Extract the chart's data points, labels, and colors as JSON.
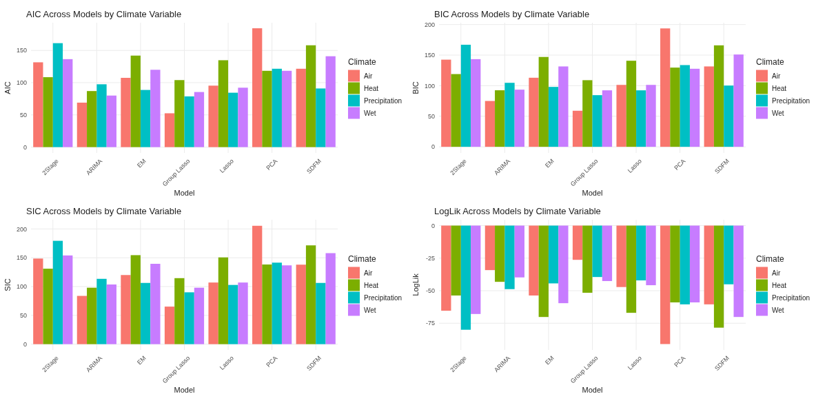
{
  "chart_data": [
    {
      "type": "bar",
      "title": "AIC Across Models by Climate Variable",
      "xlabel": "Model",
      "ylabel": "AIC",
      "legend_title": "Climate",
      "legend": "right",
      "grid": true,
      "categories": [
        "2Stage",
        "ARIMA",
        "EM",
        "Group Lasso",
        "Lasso",
        "PCA",
        "SDFM"
      ],
      "ylim": [
        -9,
        193
      ],
      "yticks": [
        0,
        50,
        100,
        150
      ],
      "series": [
        {
          "name": "Air",
          "color": "#f8766d",
          "values": [
            131.6,
            69,
            107.5,
            52.5,
            95.4,
            184.4,
            121.6
          ]
        },
        {
          "name": "Heat",
          "color": "#7cae00",
          "values": [
            108.5,
            87,
            142,
            104,
            134.8,
            118.4,
            158
          ]
        },
        {
          "name": "Precipitation",
          "color": "#00bfc4",
          "values": [
            161.3,
            97.5,
            88.7,
            78.7,
            84.4,
            121.6,
            91
          ]
        },
        {
          "name": "Wet",
          "color": "#c77cff",
          "values": [
            136.5,
            80,
            120,
            85.5,
            92.2,
            118.4,
            141
          ]
        }
      ]
    },
    {
      "type": "bar",
      "title": "BIC Across Models by Climate Variable",
      "xlabel": "Model",
      "ylabel": "BIC",
      "legend_title": "Climate",
      "legend": "right",
      "grid": true,
      "categories": [
        "2Stage",
        "ARIMA",
        "EM",
        "Group Lasso",
        "Lasso",
        "PCA",
        "SDFM"
      ],
      "ylim": [
        -10,
        203
      ],
      "yticks": [
        0,
        50,
        100,
        150,
        200
      ],
      "series": [
        {
          "name": "Air",
          "color": "#f8766d",
          "values": [
            142.6,
            75,
            113,
            59,
            101.3,
            193.7,
            131.5
          ]
        },
        {
          "name": "Heat",
          "color": "#7cae00",
          "values": [
            119,
            92.5,
            147,
            109,
            140.8,
            129.6,
            166
          ]
        },
        {
          "name": "Precipitation",
          "color": "#00bfc4",
          "values": [
            167,
            104.7,
            98,
            84.5,
            92.4,
            133.7,
            100.2
          ]
        },
        {
          "name": "Wet",
          "color": "#c77cff",
          "values": [
            143.4,
            93.5,
            131.5,
            92.4,
            101.3,
            127.7,
            151
          ]
        }
      ]
    },
    {
      "type": "bar",
      "title": "SIC Across Models by Climate Variable",
      "xlabel": "Model",
      "ylabel": "SIC",
      "legend_title": "Climate",
      "legend": "right",
      "grid": true,
      "categories": [
        "2Stage",
        "ARIMA",
        "EM",
        "Group Lasso",
        "Lasso",
        "PCA",
        "SDFM"
      ],
      "ylim": [
        -10,
        216
      ],
      "yticks": [
        0,
        50,
        100,
        150,
        200
      ],
      "series": [
        {
          "name": "Air",
          "color": "#f8766d",
          "values": [
            148.6,
            83.8,
            120,
            65.2,
            107,
            205.5,
            138
          ]
        },
        {
          "name": "Heat",
          "color": "#7cae00",
          "values": [
            131,
            98,
            154.5,
            114.6,
            150.6,
            138.3,
            171.5
          ]
        },
        {
          "name": "Precipitation",
          "color": "#00bfc4",
          "values": [
            179.4,
            113.4,
            106.3,
            90,
            102.8,
            141.5,
            106.3
          ]
        },
        {
          "name": "Wet",
          "color": "#c77cff",
          "values": [
            154,
            103.6,
            139.5,
            98,
            107,
            136.8,
            158
          ]
        }
      ]
    },
    {
      "type": "bar",
      "title": "LogLik Across Models by Climate Variable",
      "xlabel": "Model",
      "ylabel": "LogLik",
      "legend_title": "Climate",
      "legend": "right",
      "grid": true,
      "categories": [
        "2Stage",
        "ARIMA",
        "EM",
        "Group Lasso",
        "Lasso",
        "PCA",
        "SDFM"
      ],
      "ylim": [
        -95.5,
        4.5
      ],
      "yticks": [
        0,
        -25,
        -50,
        -75
      ],
      "series": [
        {
          "name": "Air",
          "color": "#f8766d",
          "values": [
            -65.4,
            -34.2,
            -53.7,
            -26.3,
            -47.2,
            -91,
            -60.5
          ]
        },
        {
          "name": "Heat",
          "color": "#7cae00",
          "values": [
            -53.7,
            -43.2,
            -70.2,
            -51.6,
            -67,
            -59,
            -78.4
          ]
        },
        {
          "name": "Precipitation",
          "color": "#00bfc4",
          "values": [
            -80,
            -48.8,
            -44.4,
            -39.5,
            -42.1,
            -60.5,
            -45.1
          ]
        },
        {
          "name": "Wet",
          "color": "#c77cff",
          "values": [
            -67.9,
            -39.8,
            -59.6,
            -42.6,
            -45.8,
            -59,
            -70.2
          ]
        }
      ]
    }
  ]
}
